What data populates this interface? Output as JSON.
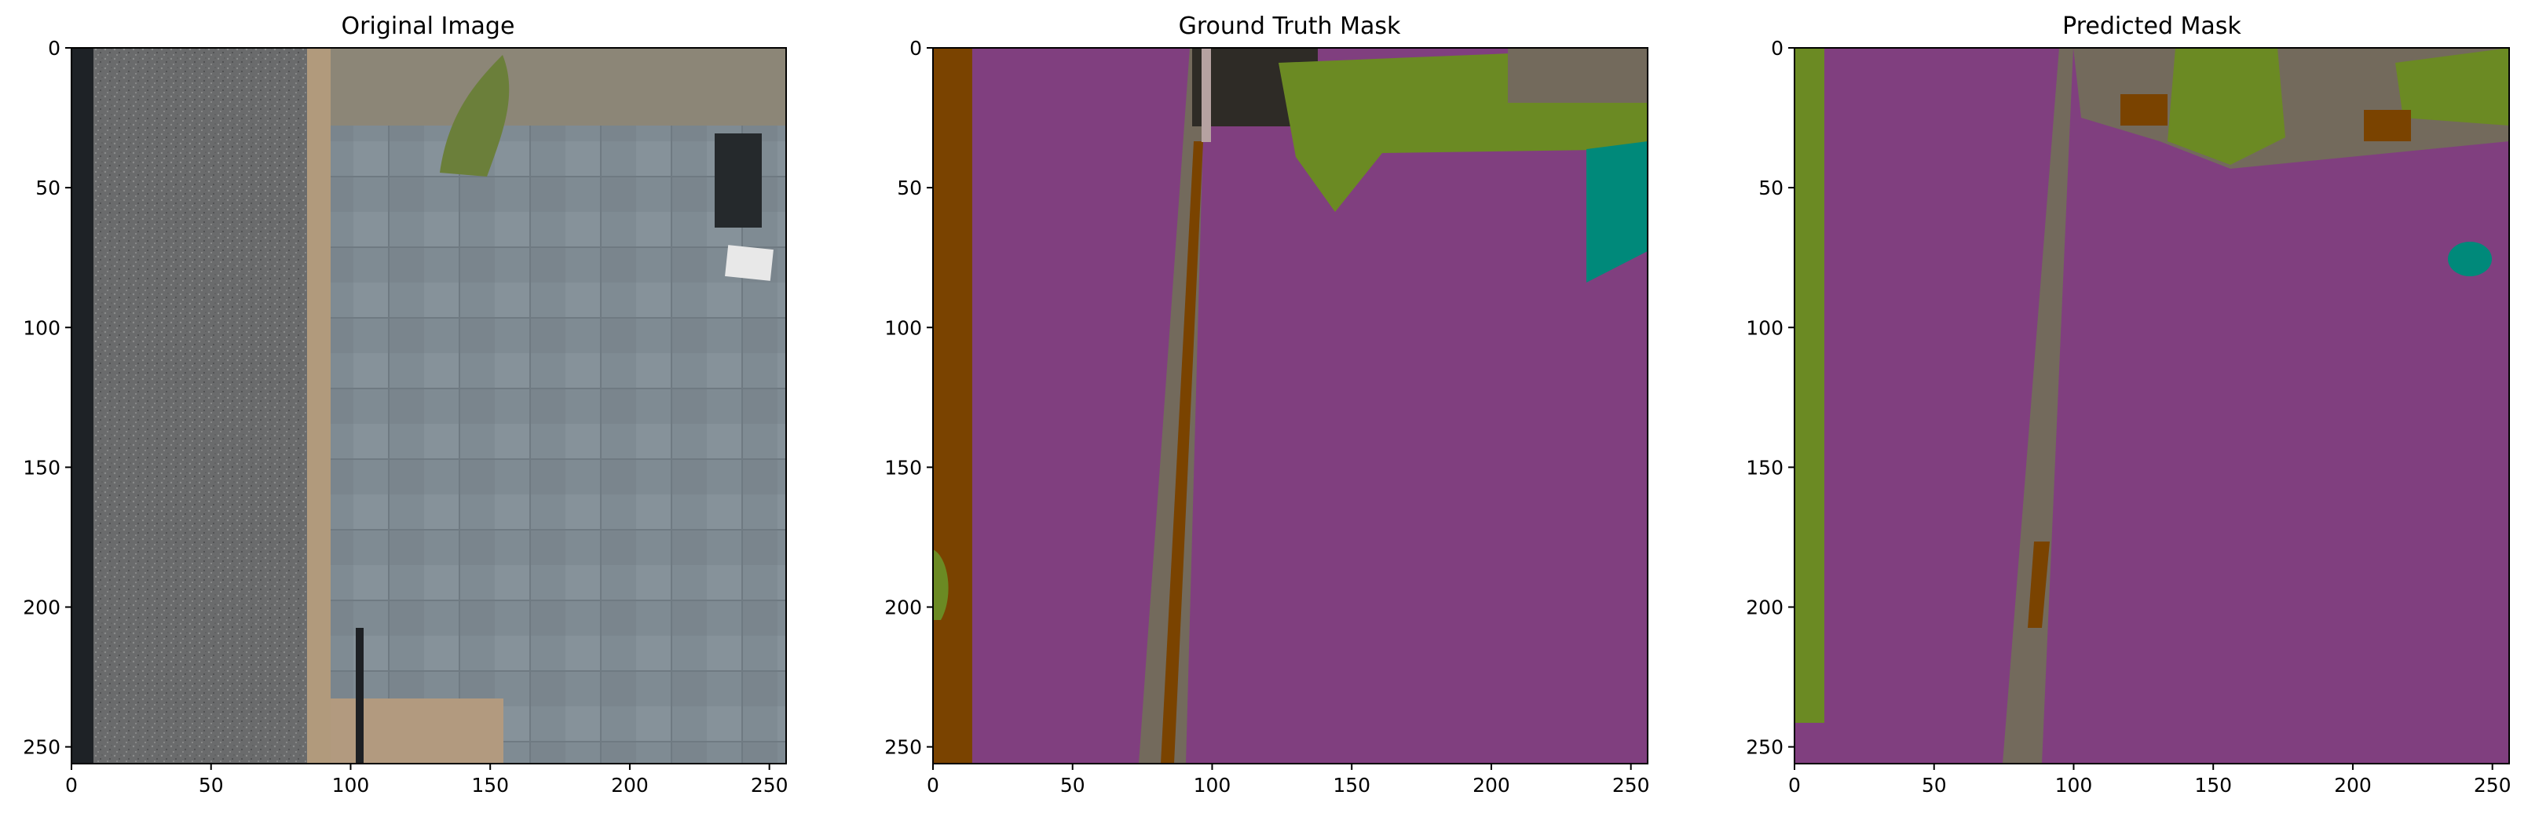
{
  "figure": {
    "panels": [
      {
        "id": "original",
        "title": "Original Image"
      },
      {
        "id": "gt",
        "title": "Ground Truth Mask"
      },
      {
        "id": "pred",
        "title": "Predicted Mask"
      }
    ],
    "axes": {
      "x_ticks": [
        "0",
        "50",
        "100",
        "150",
        "200",
        "250"
      ],
      "y_ticks": [
        "0",
        "50",
        "100",
        "150",
        "200",
        "250"
      ],
      "xlim": [
        0,
        256
      ],
      "ylim": [
        256,
        0
      ]
    },
    "colors": {
      "gravel": "#6e6e6e",
      "paving": "#7e8a92",
      "border_tan": "#b19a7c",
      "dark_edge": "#1e2226",
      "mask_purple": "#803f7f",
      "mask_brown": "#7a4300",
      "mask_green": "#6b8a23",
      "mask_gray": "#736a5c",
      "mask_teal": "#00897a",
      "mask_dark": "#2e2b26",
      "mask_pink": "#b6a2a1"
    },
    "icons": {
      "frame": "axes-frame",
      "photo": "aerial-patio-image"
    }
  }
}
